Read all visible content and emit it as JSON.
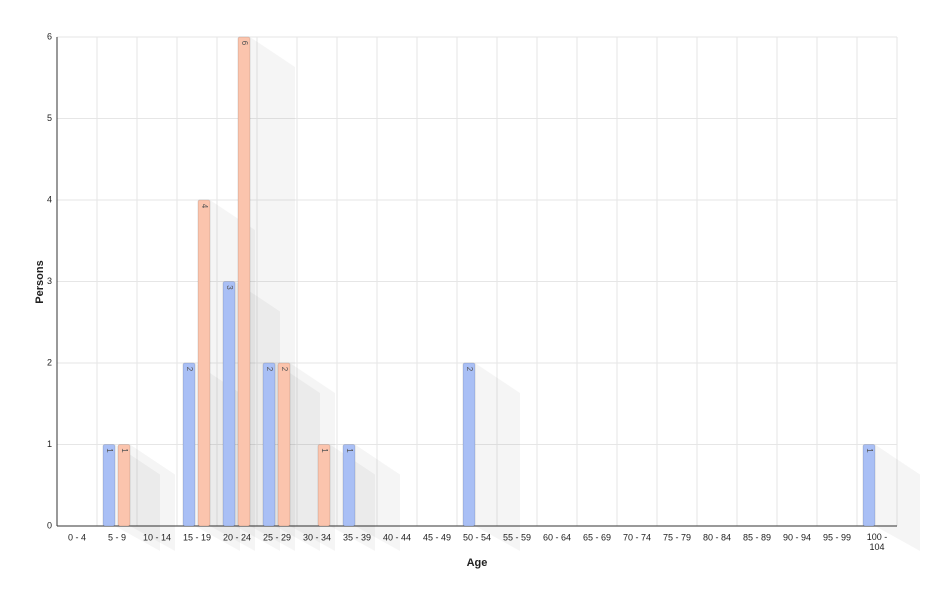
{
  "chart_data": {
    "type": "bar",
    "x_label": "Age",
    "y_label": "Persons",
    "categories": [
      "0 - 4",
      "5 - 9",
      "10 - 14",
      "15 - 19",
      "20 - 24",
      "25 - 29",
      "30 - 34",
      "35 - 39",
      "40 - 44",
      "45 - 49",
      "50 - 54",
      "55 - 59",
      "60 - 64",
      "65 - 69",
      "70 - 74",
      "75 - 79",
      "80 - 84",
      "85 - 89",
      "90 - 94",
      "95 - 99",
      "100 - 104"
    ],
    "series": [
      {
        "color": "#a9bff5",
        "values": [
          null,
          1,
          null,
          2,
          3,
          2,
          null,
          1,
          null,
          null,
          2,
          null,
          null,
          null,
          null,
          null,
          null,
          null,
          null,
          null,
          1
        ]
      },
      {
        "color": "#fbc4ad",
        "values": [
          null,
          1,
          null,
          4,
          6,
          2,
          1,
          null,
          null,
          null,
          null,
          null,
          null,
          null,
          null,
          null,
          null,
          null,
          null,
          null,
          null
        ]
      }
    ],
    "ylim": [
      0,
      6
    ],
    "yticks": [
      0,
      1,
      2,
      3,
      4,
      5,
      6
    ],
    "grid": true
  }
}
